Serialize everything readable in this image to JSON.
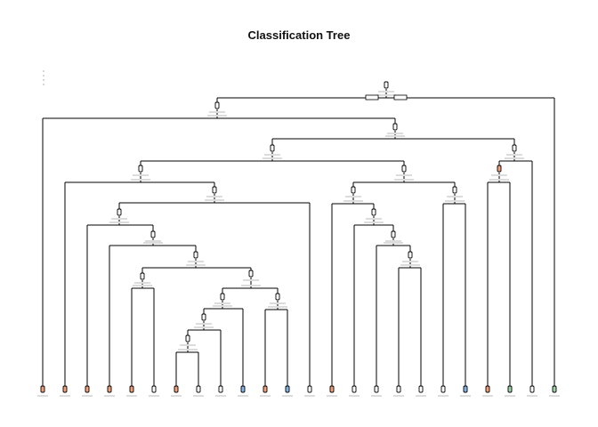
{
  "title": "Classification Tree",
  "colors": {
    "edge": "#000000",
    "node_fill": "#ffffff",
    "leaf_orange": "#f2a07b",
    "leaf_blue": "#86b6e6",
    "leaf_green": "#9fd4a6",
    "leaf_white": "#ffffff",
    "legend_dot": "#bbbbbb"
  },
  "tree": {
    "nodes": [
      {
        "id": "root",
        "kind": "split",
        "parent": null
      },
      {
        "id": "leaf-r",
        "kind": "leaf",
        "parent": "root",
        "color": "leaf_green"
      },
      {
        "id": "n1",
        "kind": "split",
        "parent": "root"
      },
      {
        "id": "leaf-a",
        "kind": "leaf",
        "parent": "n1",
        "color": "leaf_orange"
      },
      {
        "id": "n2",
        "kind": "split",
        "parent": "n1"
      },
      {
        "id": "n3",
        "kind": "split",
        "parent": "n2"
      },
      {
        "id": "n20",
        "kind": "split",
        "parent": "n2"
      },
      {
        "id": "n4",
        "kind": "split",
        "parent": "n3"
      },
      {
        "id": "n15",
        "kind": "split",
        "parent": "n3"
      },
      {
        "id": "leaf-b",
        "kind": "leaf",
        "parent": "n4",
        "color": "leaf_orange"
      },
      {
        "id": "n5",
        "kind": "split",
        "parent": "n4"
      },
      {
        "id": "n6",
        "kind": "split",
        "parent": "n5"
      },
      {
        "id": "leaf-z",
        "kind": "leaf",
        "parent": "n5",
        "color": "leaf_white"
      },
      {
        "id": "leaf-c",
        "kind": "leaf",
        "parent": "n6",
        "color": "leaf_orange"
      },
      {
        "id": "n7",
        "kind": "split",
        "parent": "n6"
      },
      {
        "id": "leaf-d",
        "kind": "leaf",
        "parent": "n7",
        "color": "leaf_orange"
      },
      {
        "id": "n8",
        "kind": "split",
        "parent": "n7"
      },
      {
        "id": "n9",
        "kind": "split",
        "parent": "n8"
      },
      {
        "id": "n10",
        "kind": "split",
        "parent": "n8"
      },
      {
        "id": "leaf-e",
        "kind": "leaf",
        "parent": "n9",
        "color": "leaf_orange"
      },
      {
        "id": "leaf-f",
        "kind": "leaf",
        "parent": "n9",
        "color": "leaf_white"
      },
      {
        "id": "n11",
        "kind": "split",
        "parent": "n10"
      },
      {
        "id": "n14",
        "kind": "split",
        "parent": "n10"
      },
      {
        "id": "n12",
        "kind": "split",
        "parent": "n11"
      },
      {
        "id": "leaf-j",
        "kind": "leaf",
        "parent": "n11",
        "color": "leaf_blue"
      },
      {
        "id": "n13",
        "kind": "split",
        "parent": "n12"
      },
      {
        "id": "leaf-i",
        "kind": "leaf",
        "parent": "n12",
        "color": "leaf_white"
      },
      {
        "id": "leaf-g",
        "kind": "leaf",
        "parent": "n13",
        "color": "leaf_orange"
      },
      {
        "id": "leaf-h",
        "kind": "leaf",
        "parent": "n13",
        "color": "leaf_white"
      },
      {
        "id": "leaf-k",
        "kind": "leaf",
        "parent": "n14",
        "color": "leaf_orange"
      },
      {
        "id": "leaf-l",
        "kind": "leaf",
        "parent": "n14",
        "color": "leaf_blue"
      },
      {
        "id": "n16",
        "kind": "split",
        "parent": "n15"
      },
      {
        "id": "n19",
        "kind": "split",
        "parent": "n15"
      },
      {
        "id": "leaf-m",
        "kind": "leaf",
        "parent": "n16",
        "color": "leaf_orange"
      },
      {
        "id": "n17",
        "kind": "split",
        "parent": "n16"
      },
      {
        "id": "leaf-n",
        "kind": "leaf",
        "parent": "n17",
        "color": "leaf_white"
      },
      {
        "id": "n18",
        "kind": "split",
        "parent": "n17"
      },
      {
        "id": "leaf-o",
        "kind": "leaf",
        "parent": "n18",
        "color": "leaf_white"
      },
      {
        "id": "n18b",
        "kind": "split",
        "parent": "n18"
      },
      {
        "id": "leaf-p",
        "kind": "leaf",
        "parent": "n18b",
        "color": "leaf_white"
      },
      {
        "id": "leaf-q",
        "kind": "leaf",
        "parent": "n18b",
        "color": "leaf_white"
      },
      {
        "id": "leaf-s",
        "kind": "leaf",
        "parent": "n19",
        "color": "leaf_white"
      },
      {
        "id": "leaf-t",
        "kind": "leaf",
        "parent": "n19",
        "color": "leaf_blue"
      },
      {
        "id": "n21",
        "kind": "split",
        "parent": "n20",
        "color": "leaf_orange"
      },
      {
        "id": "leaf-x",
        "kind": "leaf",
        "parent": "n20",
        "color": "leaf_white"
      },
      {
        "id": "leaf-u",
        "kind": "leaf",
        "parent": "n21",
        "color": "leaf_orange"
      },
      {
        "id": "leaf-w",
        "kind": "leaf",
        "parent": "n21",
        "color": "leaf_green"
      }
    ]
  }
}
